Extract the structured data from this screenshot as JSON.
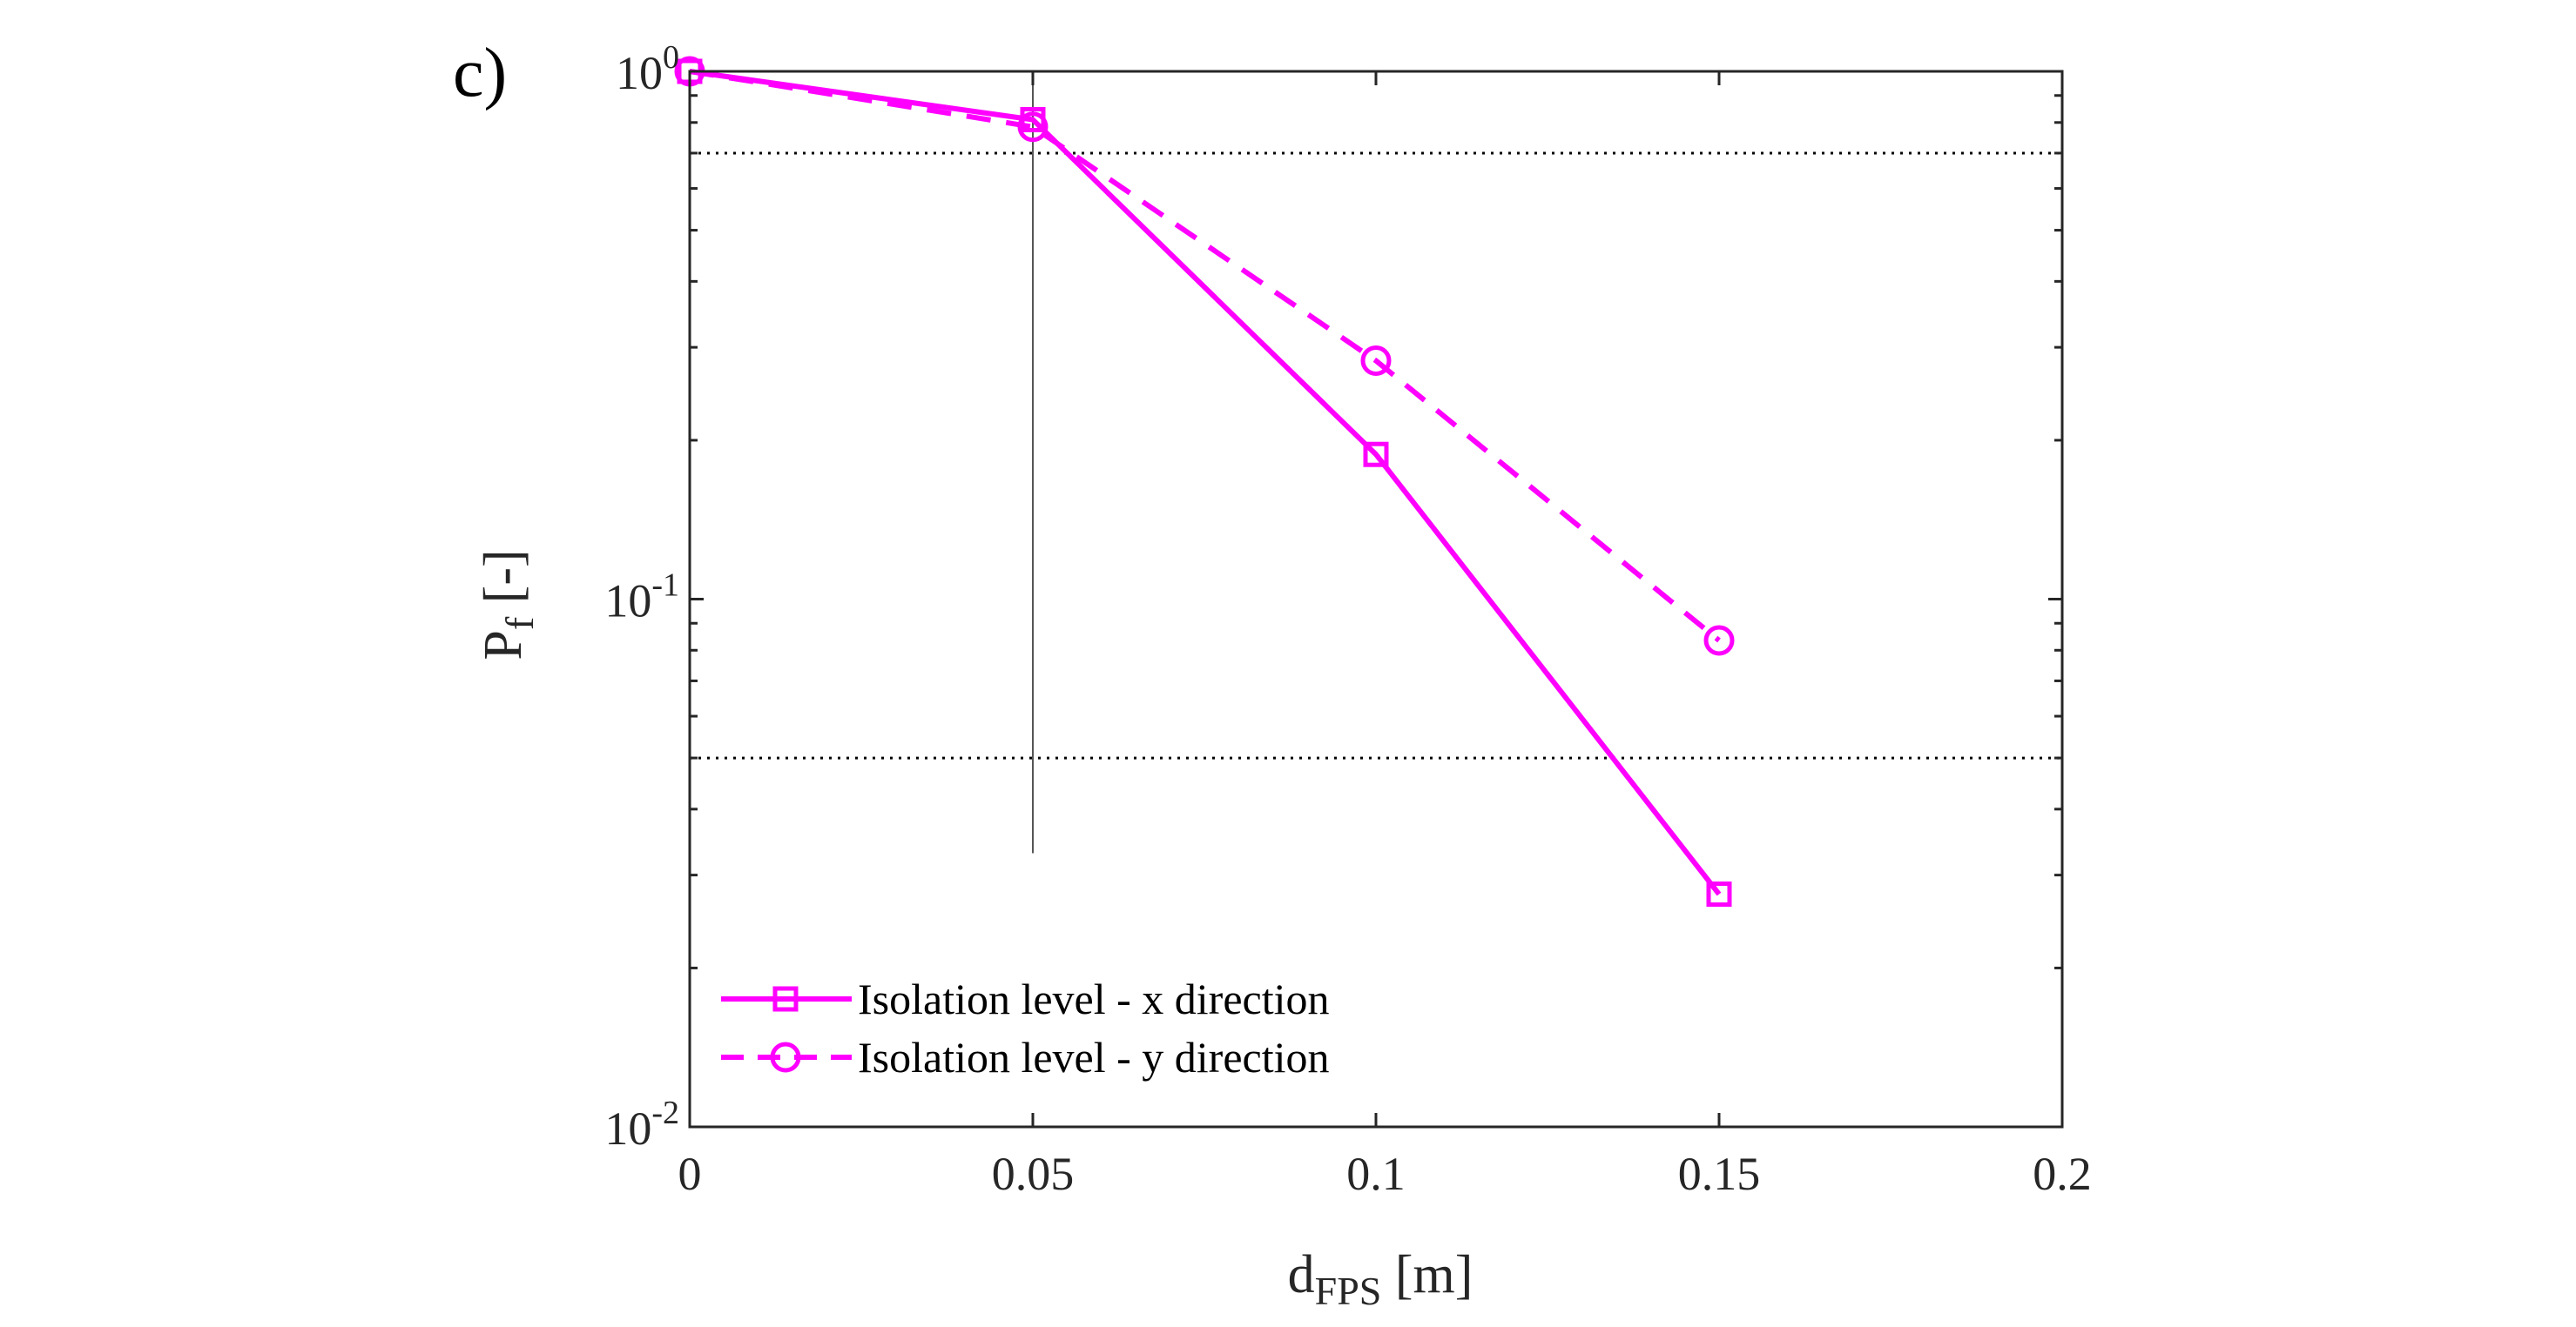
{
  "panel_label": "c)",
  "colors": {
    "series": "#ff00ff",
    "axis": "#262626",
    "refline": "#000000",
    "background": "#ffffff"
  },
  "chart_data": {
    "type": "line",
    "yscale": "log",
    "xlabel": {
      "main": "d",
      "sub": "FPS",
      "suffix": " [m]"
    },
    "ylabel": {
      "main": "P",
      "sub": "f",
      "suffix": " [-]"
    },
    "xlim": [
      0,
      0.2
    ],
    "ylim": [
      0.01,
      1
    ],
    "x_ticks": [
      0,
      0.05,
      0.1,
      0.15,
      0.2
    ],
    "x_tick_labels": [
      "0",
      "0.05",
      "0.1",
      "0.15",
      "0.2"
    ],
    "y_ticks": [
      {
        "value": 1,
        "base": "10",
        "exp": "0"
      },
      {
        "value": 0.1,
        "base": "10",
        "exp": "-1"
      },
      {
        "value": 0.01,
        "base": "10",
        "exp": "-2"
      }
    ],
    "series": [
      {
        "name": "Isolation level - x direction",
        "x": [
          0,
          0.05,
          0.1,
          0.15
        ],
        "values": [
          1.0,
          0.81,
          0.188,
          0.0276
        ],
        "line_style": "solid",
        "marker": "square"
      },
      {
        "name": "Isolation level - y direction",
        "x": [
          0,
          0.05,
          0.1,
          0.15
        ],
        "values": [
          1.0,
          0.785,
          0.283,
          0.0835
        ],
        "line_style": "dashed",
        "marker": "circle"
      }
    ],
    "reference_lines": [
      {
        "orientation": "horizontal",
        "value": 0.7,
        "style": "dotted"
      },
      {
        "orientation": "horizontal",
        "value": 0.05,
        "style": "dotted"
      },
      {
        "orientation": "vertical",
        "value": 0.05,
        "y_range": [
          0.033,
          1
        ],
        "style": "solid-thin"
      }
    ],
    "legend_position": "lower-left"
  }
}
